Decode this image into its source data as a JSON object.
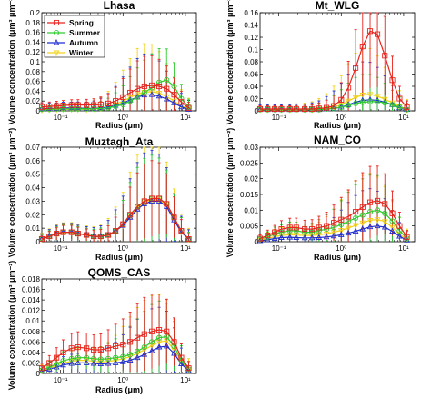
{
  "figure": {
    "xlabel": "Radius (μm)",
    "ylabel": "Volume concentration (μm³ μm⁻²)",
    "legend": [
      "Spring",
      "Summer",
      "Autumn",
      "Winter"
    ]
  },
  "chart_data": [
    {
      "type": "line",
      "title": "Lhasa",
      "xscale": "log",
      "xlim": [
        0.05,
        15
      ],
      "ylim": [
        0,
        0.2
      ],
      "yticks": [
        "0",
        "0.02",
        "0.04",
        "0.06",
        "0.08",
        "0.1",
        "0.12",
        "0.14",
        "0.16",
        "0.18",
        "0.2"
      ],
      "xticks": [
        "10⁻¹",
        "10⁰",
        "10¹"
      ],
      "legend_position": "top-left",
      "colors": {
        "Spring": "#e8231d",
        "Summer": "#2ecc2e",
        "Autumn": "#1f2fd0",
        "Winter": "#f2d21b"
      },
      "x": [
        0.05,
        0.066,
        0.086,
        0.11,
        0.15,
        0.19,
        0.26,
        0.34,
        0.44,
        0.58,
        0.76,
        1.0,
        1.3,
        1.7,
        2.2,
        2.9,
        3.8,
        5.0,
        6.6,
        8.6,
        11.3
      ],
      "series": [
        {
          "name": "Spring",
          "values": [
            0.008,
            0.009,
            0.01,
            0.011,
            0.012,
            0.012,
            0.012,
            0.012,
            0.013,
            0.015,
            0.02,
            0.028,
            0.037,
            0.045,
            0.05,
            0.052,
            0.05,
            0.045,
            0.033,
            0.018,
            0.006
          ]
        },
        {
          "name": "Summer",
          "values": [
            0.003,
            0.003,
            0.004,
            0.004,
            0.004,
            0.004,
            0.004,
            0.004,
            0.005,
            0.006,
            0.009,
            0.013,
            0.02,
            0.028,
            0.037,
            0.047,
            0.058,
            0.063,
            0.05,
            0.025,
            0.008
          ]
        },
        {
          "name": "Autumn",
          "values": [
            0.004,
            0.005,
            0.005,
            0.006,
            0.006,
            0.006,
            0.005,
            0.005,
            0.006,
            0.008,
            0.011,
            0.016,
            0.022,
            0.028,
            0.032,
            0.033,
            0.03,
            0.024,
            0.016,
            0.008,
            0.003
          ]
        },
        {
          "name": "Winter",
          "values": [
            0.002,
            0.003,
            0.003,
            0.003,
            0.003,
            0.003,
            0.003,
            0.004,
            0.005,
            0.008,
            0.013,
            0.02,
            0.027,
            0.034,
            0.038,
            0.039,
            0.036,
            0.029,
            0.02,
            0.01,
            0.004
          ]
        }
      ]
    },
    {
      "type": "line",
      "title": "Mt_WLG",
      "xscale": "log",
      "xlim": [
        0.05,
        15
      ],
      "ylim": [
        0,
        0.16
      ],
      "yticks": [
        "0",
        "0.02",
        "0.04",
        "0.06",
        "0.08",
        "0.1",
        "0.12",
        "0.14",
        "0.16"
      ],
      "xticks": [
        "10⁻¹",
        "10⁰",
        "10¹"
      ],
      "colors": {
        "Spring": "#e8231d",
        "Summer": "#2ecc2e",
        "Autumn": "#1f2fd0",
        "Winter": "#f2d21b"
      },
      "x": [
        0.05,
        0.066,
        0.086,
        0.11,
        0.15,
        0.19,
        0.26,
        0.34,
        0.44,
        0.58,
        0.76,
        1.0,
        1.3,
        1.7,
        2.2,
        2.9,
        3.8,
        5.0,
        6.6,
        8.6,
        11.3
      ],
      "series": [
        {
          "name": "Spring",
          "values": [
            0.003,
            0.003,
            0.003,
            0.003,
            0.003,
            0.003,
            0.003,
            0.003,
            0.004,
            0.005,
            0.008,
            0.018,
            0.038,
            0.07,
            0.105,
            0.13,
            0.125,
            0.09,
            0.05,
            0.02,
            0.006
          ]
        },
        {
          "name": "Summer",
          "values": [
            0.002,
            0.002,
            0.002,
            0.002,
            0.002,
            0.002,
            0.002,
            0.002,
            0.002,
            0.003,
            0.004,
            0.006,
            0.009,
            0.012,
            0.014,
            0.015,
            0.015,
            0.013,
            0.01,
            0.006,
            0.002
          ]
        },
        {
          "name": "Autumn",
          "values": [
            0.002,
            0.002,
            0.002,
            0.002,
            0.002,
            0.002,
            0.002,
            0.002,
            0.002,
            0.003,
            0.004,
            0.006,
            0.01,
            0.014,
            0.017,
            0.018,
            0.017,
            0.014,
            0.01,
            0.005,
            0.002
          ]
        },
        {
          "name": "Winter",
          "values": [
            0.002,
            0.002,
            0.002,
            0.002,
            0.002,
            0.002,
            0.002,
            0.002,
            0.003,
            0.004,
            0.006,
            0.01,
            0.016,
            0.022,
            0.026,
            0.027,
            0.024,
            0.019,
            0.013,
            0.007,
            0.002
          ]
        }
      ]
    },
    {
      "type": "line",
      "title": "Muztagh_Ata",
      "xscale": "log",
      "xlim": [
        0.05,
        15
      ],
      "ylim": [
        0,
        0.07
      ],
      "yticks": [
        "0",
        "0.01",
        "0.02",
        "0.03",
        "0.04",
        "0.05",
        "0.06",
        "0.07"
      ],
      "xticks": [
        "10⁻¹",
        "10⁰",
        "10¹"
      ],
      "colors": {
        "Spring": "#e8231d",
        "Summer": "#2ecc2e",
        "Autumn": "#1f2fd0",
        "Winter": "#f2d21b"
      },
      "x": [
        0.05,
        0.066,
        0.086,
        0.11,
        0.15,
        0.19,
        0.26,
        0.34,
        0.44,
        0.58,
        0.76,
        1.0,
        1.3,
        1.7,
        2.2,
        2.9,
        3.8,
        5.0,
        6.6,
        8.6,
        11.3
      ],
      "series": [
        {
          "name": "Spring",
          "values": [
            0.002,
            0.004,
            0.006,
            0.007,
            0.007,
            0.006,
            0.005,
            0.004,
            0.004,
            0.005,
            0.008,
            0.013,
            0.02,
            0.026,
            0.03,
            0.032,
            0.032,
            0.028,
            0.018,
            0.008,
            0.002
          ]
        },
        {
          "name": "Summer",
          "values": [
            0.002,
            0.004,
            0.006,
            0.007,
            0.007,
            0.006,
            0.005,
            0.004,
            0.004,
            0.005,
            0.008,
            0.013,
            0.02,
            0.026,
            0.03,
            0.032,
            0.032,
            0.028,
            0.018,
            0.008,
            0.002
          ]
        },
        {
          "name": "Autumn",
          "values": [
            0.002,
            0.004,
            0.006,
            0.007,
            0.007,
            0.006,
            0.005,
            0.004,
            0.004,
            0.005,
            0.008,
            0.012,
            0.018,
            0.024,
            0.028,
            0.03,
            0.03,
            0.026,
            0.016,
            0.007,
            0.002
          ]
        },
        {
          "name": "Winter",
          "values": [
            0.002,
            0.004,
            0.006,
            0.007,
            0.007,
            0.006,
            0.005,
            0.004,
            0.004,
            0.005,
            0.008,
            0.012,
            0.019,
            0.025,
            0.029,
            0.031,
            0.031,
            0.027,
            0.017,
            0.007,
            0.002
          ]
        }
      ]
    },
    {
      "type": "line",
      "title": "NAM_CO",
      "xscale": "log",
      "xlim": [
        0.05,
        15
      ],
      "ylim": [
        0,
        0.03
      ],
      "yticks": [
        "0",
        "0.005",
        "0.01",
        "0.015",
        "0.02",
        "0.025",
        "0.03"
      ],
      "xticks": [
        "10⁻¹",
        "10⁰",
        "10¹"
      ],
      "colors": {
        "Spring": "#e8231d",
        "Summer": "#2ecc2e",
        "Autumn": "#1f2fd0",
        "Winter": "#f2d21b"
      },
      "x": [
        0.05,
        0.066,
        0.086,
        0.11,
        0.15,
        0.19,
        0.26,
        0.34,
        0.44,
        0.58,
        0.76,
        1.0,
        1.3,
        1.7,
        2.2,
        2.9,
        3.8,
        5.0,
        6.6,
        8.6,
        11.3
      ],
      "series": [
        {
          "name": "Spring",
          "values": [
            0.001,
            0.002,
            0.003,
            0.004,
            0.0045,
            0.0045,
            0.004,
            0.004,
            0.0045,
            0.005,
            0.006,
            0.007,
            0.008,
            0.0095,
            0.011,
            0.0125,
            0.013,
            0.012,
            0.009,
            0.005,
            0.0015
          ]
        },
        {
          "name": "Summer",
          "values": [
            0.0008,
            0.0015,
            0.0025,
            0.003,
            0.0035,
            0.0035,
            0.003,
            0.003,
            0.0035,
            0.004,
            0.0045,
            0.0055,
            0.0065,
            0.0075,
            0.0085,
            0.0095,
            0.01,
            0.009,
            0.0065,
            0.0035,
            0.001
          ]
        },
        {
          "name": "Autumn",
          "values": [
            0.0003,
            0.0006,
            0.001,
            0.0013,
            0.0014,
            0.0013,
            0.0012,
            0.0012,
            0.0013,
            0.0015,
            0.0018,
            0.0022,
            0.0027,
            0.0033,
            0.004,
            0.0047,
            0.005,
            0.0046,
            0.0033,
            0.0017,
            0.0005
          ]
        },
        {
          "name": "Winter",
          "values": [
            0.0005,
            0.001,
            0.0016,
            0.002,
            0.0022,
            0.0021,
            0.002,
            0.002,
            0.0022,
            0.0025,
            0.003,
            0.0036,
            0.0043,
            0.0052,
            0.006,
            0.0068,
            0.007,
            0.0064,
            0.0046,
            0.0024,
            0.0007
          ]
        }
      ]
    },
    {
      "type": "line",
      "title": "QOMS_CAS",
      "xscale": "log",
      "xlim": [
        0.05,
        15
      ],
      "ylim": [
        0,
        0.018
      ],
      "yticks": [
        "0",
        "0.002",
        "0.004",
        "0.006",
        "0.008",
        "0.01",
        "0.012",
        "0.014",
        "0.016",
        "0.018"
      ],
      "xticks": [
        "10⁻¹",
        "10⁰",
        "10¹"
      ],
      "colors": {
        "Spring": "#e8231d",
        "Summer": "#2ecc2e",
        "Autumn": "#1f2fd0",
        "Winter": "#f2d21b"
      },
      "x": [
        0.05,
        0.066,
        0.086,
        0.11,
        0.15,
        0.19,
        0.26,
        0.34,
        0.44,
        0.58,
        0.76,
        1.0,
        1.3,
        1.7,
        2.2,
        2.9,
        3.8,
        5.0,
        6.6,
        8.6,
        11.3
      ],
      "series": [
        {
          "name": "Spring",
          "values": [
            0.001,
            0.002,
            0.003,
            0.004,
            0.0048,
            0.005,
            0.0048,
            0.0045,
            0.0045,
            0.0048,
            0.0052,
            0.0055,
            0.006,
            0.0068,
            0.0075,
            0.008,
            0.0083,
            0.008,
            0.006,
            0.003,
            0.001
          ]
        },
        {
          "name": "Summer",
          "values": [
            0.0006,
            0.0012,
            0.0018,
            0.0024,
            0.0028,
            0.003,
            0.003,
            0.0028,
            0.0027,
            0.0028,
            0.003,
            0.0032,
            0.0036,
            0.0042,
            0.005,
            0.006,
            0.0068,
            0.007,
            0.0052,
            0.0025,
            0.0008
          ]
        },
        {
          "name": "Autumn",
          "values": [
            0.0004,
            0.0008,
            0.0012,
            0.0016,
            0.0019,
            0.002,
            0.002,
            0.0019,
            0.0018,
            0.0019,
            0.002,
            0.0022,
            0.0025,
            0.003,
            0.0036,
            0.0043,
            0.005,
            0.0052,
            0.0038,
            0.0018,
            0.0005
          ]
        },
        {
          "name": "Winter",
          "values": [
            0.0005,
            0.001,
            0.0015,
            0.002,
            0.0023,
            0.0025,
            0.0025,
            0.0023,
            0.0022,
            0.0023,
            0.0025,
            0.0028,
            0.0032,
            0.0038,
            0.0045,
            0.0053,
            0.006,
            0.0062,
            0.0045,
            0.0022,
            0.0007
          ]
        }
      ]
    }
  ]
}
